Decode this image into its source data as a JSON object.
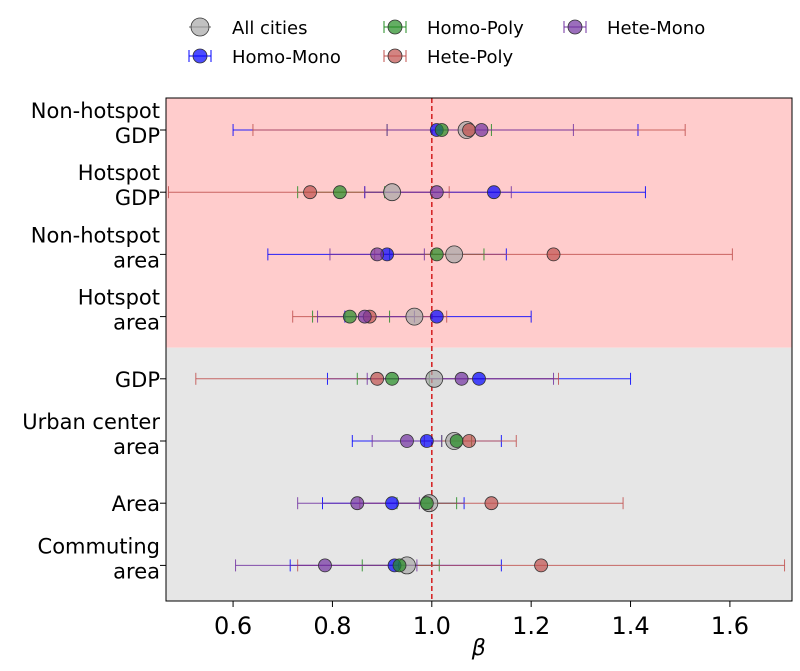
{
  "chart_data": {
    "type": "scatter",
    "xlabel": "β",
    "xlim": [
      0.465,
      1.725
    ],
    "xticks": [
      "0.6",
      "0.8",
      "1.0",
      "1.2",
      "1.4",
      "1.6"
    ],
    "xtick_values": [
      0.6,
      0.8,
      1.0,
      1.2,
      1.4,
      1.6
    ],
    "reference_line": {
      "x": 1.0,
      "style": "dashed",
      "color": "#d62728"
    },
    "grid": false,
    "legend_position": "top",
    "categories": [
      {
        "label_lines": [
          "Non-hotspot",
          "GDP"
        ],
        "region": "hotspot"
      },
      {
        "label_lines": [
          "Hotspot",
          "GDP"
        ],
        "region": "hotspot"
      },
      {
        "label_lines": [
          "Non-hotspot",
          "area"
        ],
        "region": "hotspot"
      },
      {
        "label_lines": [
          "Hotspot",
          "area"
        ],
        "region": "hotspot"
      },
      {
        "label_lines": [
          "GDP"
        ],
        "region": "other"
      },
      {
        "label_lines": [
          "Urban center",
          "area"
        ],
        "region": "other"
      },
      {
        "label_lines": [
          "Area"
        ],
        "region": "other"
      },
      {
        "label_lines": [
          "Commuting",
          "area"
        ],
        "region": "other"
      }
    ],
    "region_colors": {
      "hotspot": "#ffcccc",
      "other": "#e6e6e6"
    },
    "series": [
      {
        "name": "All cities",
        "color": "#a6a6a6",
        "marker": "large-circle",
        "points": [
          {
            "x": 1.07,
            "lo": 1.07,
            "hi": 1.07
          },
          {
            "x": 0.92,
            "lo": 0.92,
            "hi": 0.92
          },
          {
            "x": 1.045,
            "lo": 1.045,
            "hi": 1.045
          },
          {
            "x": 0.965,
            "lo": 0.965,
            "hi": 0.965
          },
          {
            "x": 1.005,
            "lo": 1.005,
            "hi": 1.005
          },
          {
            "x": 1.045,
            "lo": 1.045,
            "hi": 1.045
          },
          {
            "x": 0.995,
            "lo": 0.995,
            "hi": 0.995
          },
          {
            "x": 0.95,
            "lo": 0.95,
            "hi": 0.95
          }
        ]
      },
      {
        "name": "Homo-Mono",
        "color": "#0000ff",
        "marker": "circle",
        "points": [
          {
            "x": 1.01,
            "lo": 0.6,
            "hi": 1.415
          },
          {
            "x": 1.125,
            "lo": 0.865,
            "hi": 1.43
          },
          {
            "x": 0.91,
            "lo": 0.67,
            "hi": 1.15
          },
          {
            "x": 1.01,
            "lo": 0.825,
            "hi": 1.2
          },
          {
            "x": 1.095,
            "lo": 0.79,
            "hi": 1.4
          },
          {
            "x": 0.99,
            "lo": 0.84,
            "hi": 1.14
          },
          {
            "x": 0.92,
            "lo": 0.78,
            "hi": 1.065
          },
          {
            "x": 0.925,
            "lo": 0.715,
            "hi": 1.14
          }
        ]
      },
      {
        "name": "Homo-Poly",
        "color": "#228b22",
        "marker": "circle",
        "points": [
          {
            "x": 1.02,
            "lo": 0.91,
            "hi": 1.12
          },
          {
            "x": 0.815,
            "lo": 0.73,
            "hi": 0.905
          },
          {
            "x": 1.01,
            "lo": 0.915,
            "hi": 1.105
          },
          {
            "x": 0.835,
            "lo": 0.76,
            "hi": 0.915
          },
          {
            "x": 0.92,
            "lo": 0.85,
            "hi": 0.995
          },
          {
            "x": 1.05,
            "lo": 1.02,
            "hi": 1.08
          },
          {
            "x": 0.99,
            "lo": 0.93,
            "hi": 1.05
          },
          {
            "x": 0.935,
            "lo": 0.86,
            "hi": 1.015
          }
        ]
      },
      {
        "name": "Hete-Poly",
        "color": "#c0504d",
        "marker": "circle",
        "points": [
          {
            "x": 1.075,
            "lo": 0.64,
            "hi": 1.51
          },
          {
            "x": 0.755,
            "lo": 0.47,
            "hi": 1.035
          },
          {
            "x": 1.245,
            "lo": 0.885,
            "hi": 1.605
          },
          {
            "x": 0.875,
            "lo": 0.72,
            "hi": 1.03
          },
          {
            "x": 0.89,
            "lo": 0.525,
            "hi": 1.255
          },
          {
            "x": 1.075,
            "lo": 0.985,
            "hi": 1.17
          },
          {
            "x": 1.12,
            "lo": 0.855,
            "hi": 1.385
          },
          {
            "x": 1.22,
            "lo": 0.73,
            "hi": 1.71
          }
        ]
      },
      {
        "name": "Hete-Mono",
        "color": "#7030a0",
        "marker": "circle",
        "points": [
          {
            "x": 1.1,
            "lo": 0.91,
            "hi": 1.285
          },
          {
            "x": 1.01,
            "lo": 0.865,
            "hi": 1.16
          },
          {
            "x": 0.89,
            "lo": 0.795,
            "hi": 0.985
          },
          {
            "x": 0.865,
            "lo": 0.77,
            "hi": 0.965
          },
          {
            "x": 1.06,
            "lo": 0.87,
            "hi": 1.245
          },
          {
            "x": 0.95,
            "lo": 0.88,
            "hi": 1.02
          },
          {
            "x": 0.85,
            "lo": 0.73,
            "hi": 0.975
          },
          {
            "x": 0.785,
            "lo": 0.605,
            "hi": 0.97
          }
        ]
      }
    ],
    "legend": [
      {
        "name": "All cities",
        "series": 0
      },
      {
        "name": "Homo-Mono",
        "series": 1
      },
      {
        "name": "Homo-Poly",
        "series": 2
      },
      {
        "name": "Hete-Poly",
        "series": 3
      },
      {
        "name": "Hete-Mono",
        "series": 4
      }
    ]
  }
}
